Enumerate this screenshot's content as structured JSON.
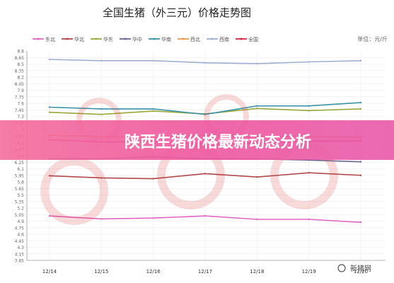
{
  "banner": {
    "text": "陕西生猪价格最新动态分析"
  },
  "watermark": {
    "text": "新猪网"
  },
  "chart_data": {
    "type": "line",
    "title": "全国生猪（外三元）价格走势图",
    "unit": "单位：元/斤",
    "categories": [
      "12/14",
      "12/15",
      "12/16",
      "12/17",
      "12/18",
      "12/19",
      "12/20"
    ],
    "yticks": [
      "3.85",
      "4.15",
      "4.3",
      "4.45",
      "4.6",
      "4.75",
      "4.9",
      "5.05",
      "5.2",
      "5.35",
      "5.5",
      "5.65",
      "5.8",
      "5.95",
      "6.1",
      "6.25",
      "6.4",
      "6.55",
      "6.7",
      "6.85",
      "7",
      "7.15",
      "7.3",
      "7.45",
      "7.6",
      "7.75",
      "7.9",
      "8.05",
      "8.2",
      "8.35",
      "8.5",
      "8.65",
      "8.8"
    ],
    "ylim": [
      3.85,
      8.8
    ],
    "legend_position": "top",
    "grid": true,
    "series": [
      {
        "name": "东北",
        "color": "#e067c0",
        "values": [
          4.9,
          4.83,
          4.85,
          4.9,
          4.82,
          4.82,
          4.75
        ]
      },
      {
        "name": "华北",
        "color": "#b04a4a",
        "values": [
          5.85,
          5.8,
          5.78,
          5.9,
          5.82,
          5.92,
          5.86
        ]
      },
      {
        "name": "华东",
        "color": "#9aa83c",
        "values": [
          7.35,
          7.3,
          7.38,
          7.31,
          7.44,
          7.39,
          7.43
        ]
      },
      {
        "name": "华中",
        "color": "#6a6690",
        "values": [
          6.25,
          6.25,
          6.3,
          6.25,
          6.25,
          6.22,
          6.18
        ]
      },
      {
        "name": "华南",
        "color": "#3a93a6",
        "values": [
          7.47,
          7.43,
          7.43,
          7.3,
          7.5,
          7.5,
          7.58
        ]
      },
      {
        "name": "西北",
        "color": "#e79a4a",
        "values": [
          6.8,
          6.78,
          6.75,
          6.8,
          6.78,
          6.78,
          6.76
        ]
      },
      {
        "name": "西南",
        "color": "#9fb0cf",
        "values": [
          8.6,
          8.57,
          8.57,
          8.52,
          8.5,
          8.54,
          8.57
        ]
      },
      {
        "name": "全国",
        "color": "#d6234a",
        "values": [
          6.7,
          6.65,
          6.65,
          6.6,
          6.62,
          6.67,
          6.67
        ]
      }
    ]
  }
}
